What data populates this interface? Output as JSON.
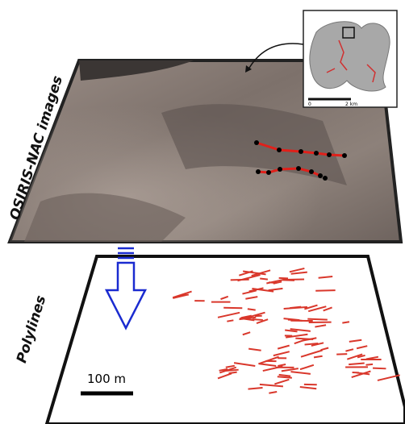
{
  "labels": {
    "top_panel": "OSIRIS-NAC images",
    "bottom_panel": "Polylines",
    "scale_bar": "100 m"
  },
  "inset": {
    "scale_start": "0",
    "scale_end": "2 km"
  }
}
